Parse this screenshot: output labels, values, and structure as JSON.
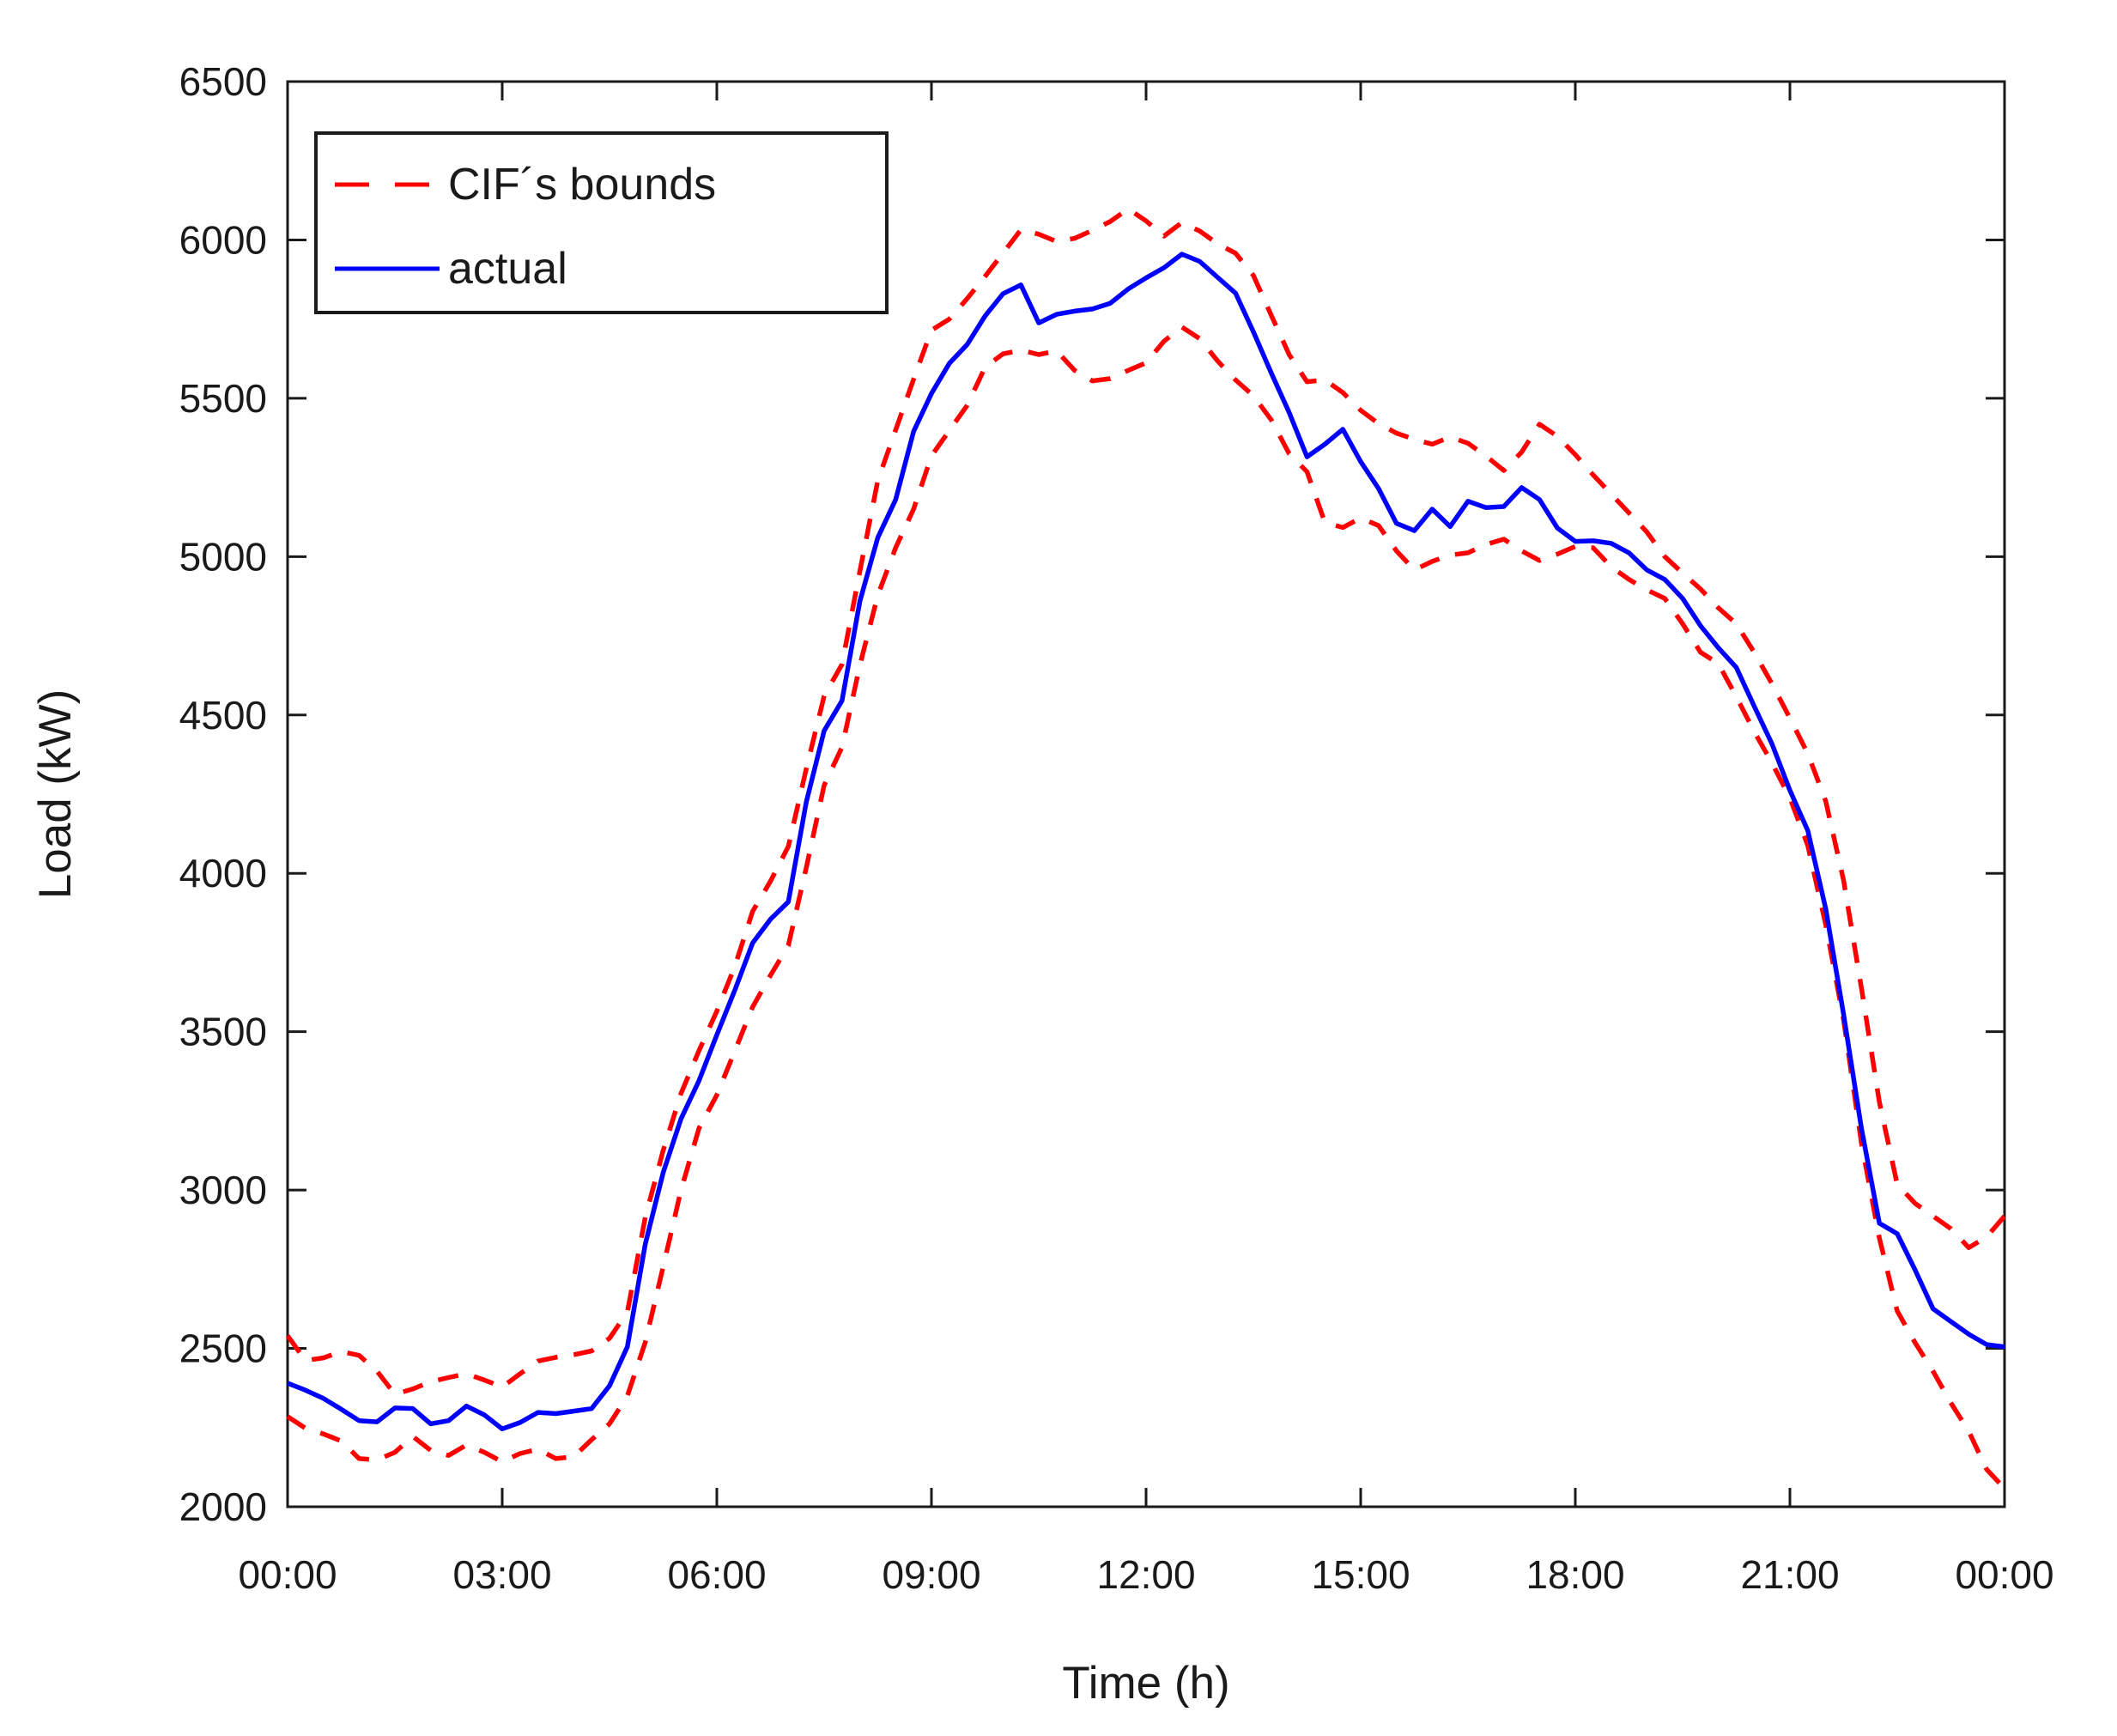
{
  "figure": {
    "ylabel": "Load (kW)",
    "xlabel": "Time (h)",
    "background": "#ffffff",
    "axis_color": "#1a1a1a",
    "legend": {
      "items": [
        {
          "label": "CIF´s bounds",
          "color": "#ff0000",
          "style": "dashed"
        },
        {
          "label": "actual",
          "color": "#0000ff",
          "style": "solid"
        }
      ]
    }
  },
  "chart_data": {
    "type": "line",
    "title": "",
    "xlabel": "Time (h)",
    "ylabel": "Load (kW)",
    "x_unit": "hours",
    "xlim": [
      0,
      24
    ],
    "ylim": [
      2000,
      6500
    ],
    "grid": false,
    "legend_position": "top-left",
    "x_ticks_hours": [
      0,
      3,
      6,
      9,
      12,
      15,
      18,
      21,
      24
    ],
    "x_tick_labels": [
      "00:00",
      "03:00",
      "06:00",
      "09:00",
      "12:00",
      "15:00",
      "18:00",
      "21:00",
      "00:00"
    ],
    "y_ticks": [
      2000,
      2500,
      3000,
      3500,
      4000,
      4500,
      5000,
      5500,
      6000,
      6500
    ],
    "x_hours": [
      0,
      0.25,
      0.5,
      0.75,
      1,
      1.25,
      1.5,
      1.75,
      2,
      2.25,
      2.5,
      2.75,
      3,
      3.25,
      3.5,
      3.75,
      4,
      4.25,
      4.5,
      4.75,
      5,
      5.25,
      5.5,
      5.75,
      6,
      6.25,
      6.5,
      6.75,
      7,
      7.25,
      7.5,
      7.75,
      8,
      8.25,
      8.5,
      8.75,
      9,
      9.25,
      9.5,
      9.75,
      10,
      10.25,
      10.5,
      10.75,
      11,
      11.25,
      11.5,
      11.75,
      12,
      12.25,
      12.5,
      12.75,
      13,
      13.25,
      13.5,
      13.75,
      14,
      14.25,
      14.5,
      14.75,
      15,
      15.25,
      15.5,
      15.75,
      16,
      16.25,
      16.5,
      16.75,
      17,
      17.25,
      17.5,
      17.75,
      18,
      18.25,
      18.5,
      18.75,
      19,
      19.25,
      19.5,
      19.75,
      20,
      20.25,
      20.5,
      20.75,
      21,
      21.25,
      21.5,
      21.75,
      22,
      22.25,
      22.5,
      22.75,
      23,
      23.25,
      23.5,
      23.75,
      24
    ],
    "series": [
      {
        "name": "cif-upper-bound",
        "legend": "CIF´s bounds",
        "color": "#ff0000",
        "dash": true,
        "values": [
          2540,
          2462,
          2470,
          2490,
          2478,
          2428,
          2355,
          2372,
          2395,
          2408,
          2420,
          2400,
          2378,
          2420,
          2460,
          2472,
          2480,
          2492,
          2532,
          2615,
          2915,
          3125,
          3305,
          3440,
          3565,
          3705,
          3880,
          3975,
          4085,
          4330,
          4560,
          4660,
          4955,
          5240,
          5400,
          5560,
          5715,
          5750,
          5815,
          5885,
          5958,
          6032,
          6018,
          5995,
          6005,
          6030,
          6058,
          6098,
          6060,
          6012,
          6055,
          6028,
          5988,
          5958,
          5888,
          5762,
          5638,
          5552,
          5558,
          5518,
          5462,
          5420,
          5390,
          5370,
          5355,
          5378,
          5358,
          5318,
          5272,
          5330,
          5418,
          5380,
          5322,
          5258,
          5198,
          5138,
          5078,
          5000,
          4948,
          4898,
          4838,
          4788,
          4698,
          4598,
          4490,
          4378,
          4228,
          3978,
          3638,
          3278,
          3018,
          2958,
          2918,
          2878,
          2818,
          2852,
          2918
        ]
      },
      {
        "name": "cif-lower-bound",
        "legend": "CIF´s bounds",
        "color": "#ff0000",
        "dash": true,
        "values": [
          2285,
          2248,
          2230,
          2208,
          2152,
          2148,
          2172,
          2222,
          2178,
          2162,
          2195,
          2172,
          2142,
          2168,
          2182,
          2152,
          2158,
          2212,
          2262,
          2350,
          2520,
          2758,
          3000,
          3195,
          3300,
          3438,
          3578,
          3678,
          3772,
          4018,
          4278,
          4398,
          4658,
          4878,
          5028,
          5150,
          5318,
          5398,
          5478,
          5598,
          5640,
          5652,
          5638,
          5650,
          5588,
          5555,
          5562,
          5588,
          5612,
          5680,
          5725,
          5688,
          5618,
          5558,
          5508,
          5432,
          5325,
          5268,
          5108,
          5092,
          5122,
          5098,
          5018,
          4958,
          4985,
          5005,
          5012,
          5038,
          5055,
          5018,
          4988,
          5008,
          5032,
          5028,
          4968,
          4928,
          4895,
          4868,
          4788,
          4698,
          4662,
          4558,
          4448,
          4348,
          4238,
          4088,
          3838,
          3538,
          3148,
          2848,
          2618,
          2518,
          2428,
          2328,
          2238,
          2118,
          2058
        ]
      },
      {
        "name": "actual",
        "legend": "actual",
        "color": "#0000ff",
        "dash": false,
        "values": [
          2390,
          2368,
          2342,
          2308,
          2272,
          2268,
          2312,
          2310,
          2262,
          2272,
          2318,
          2290,
          2246,
          2266,
          2298,
          2294,
          2302,
          2310,
          2382,
          2505,
          2830,
          3055,
          3225,
          3345,
          3490,
          3630,
          3780,
          3855,
          3910,
          4225,
          4450,
          4545,
          4860,
          5060,
          5180,
          5395,
          5515,
          5610,
          5670,
          5760,
          5830,
          5858,
          5738,
          5765,
          5775,
          5782,
          5800,
          5845,
          5880,
          5912,
          5955,
          5932,
          5882,
          5832,
          5710,
          5580,
          5455,
          5315,
          5355,
          5402,
          5300,
          5215,
          5105,
          5082,
          5150,
          5095,
          5175,
          5155,
          5158,
          5218,
          5180,
          5090,
          5048,
          5050,
          5042,
          5012,
          4958,
          4928,
          4868,
          4782,
          4712,
          4650,
          4528,
          4408,
          4262,
          4135,
          3888,
          3555,
          3195,
          2895,
          2862,
          2748,
          2625,
          2585,
          2545,
          2512,
          2505
        ]
      }
    ]
  }
}
